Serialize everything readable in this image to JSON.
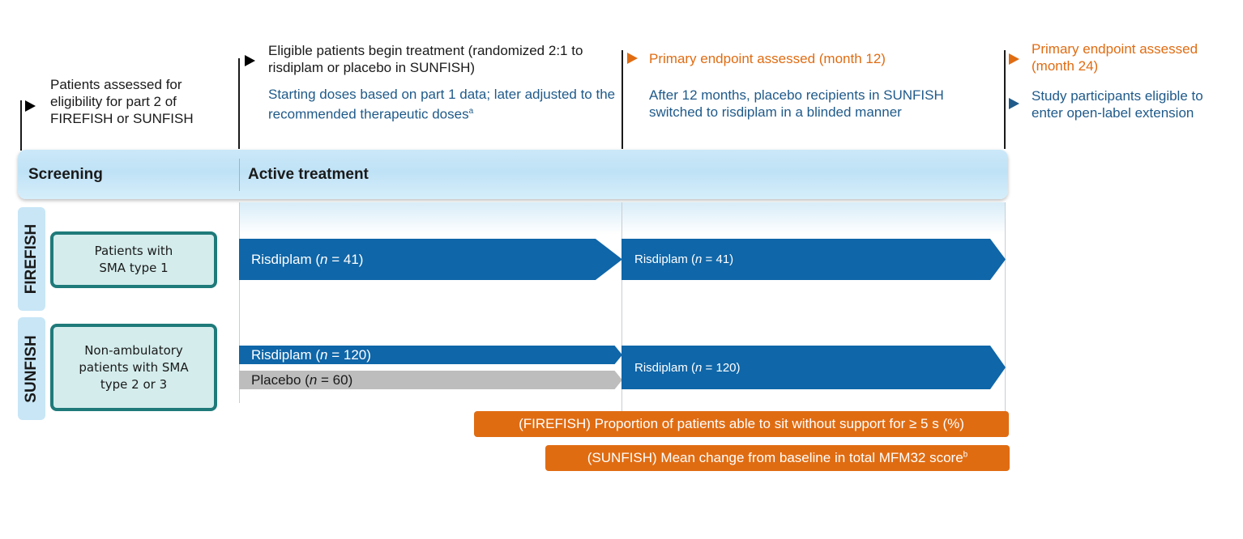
{
  "milestones": {
    "m0": {
      "text": "Patients assessed for eligibility for part 2 of FIREFISH or SUNFISH"
    },
    "m1": {
      "text": "Eligible patients begin treatment (randomized 2:1 to risdiplam or placebo in SUNFISH)",
      "note": "Starting doses based on part 1 data; later adjusted to the recommended therapeutic doses",
      "note_sup": "a"
    },
    "m2": {
      "title": "Primary endpoint assessed (month 12)",
      "note": "After 12 months, placebo recipients in SUNFISH switched to risdiplam in a blinded manner"
    },
    "m3": {
      "title": "Primary endpoint assessed (month 24)",
      "note": "Study participants eligible to enter open-label extension"
    }
  },
  "phases": {
    "screening": "Screening",
    "active": "Active treatment"
  },
  "studies": {
    "firefish": {
      "label": "FIREFISH",
      "population": "Patients with SMA type 1",
      "arm1": {
        "name": "Risdiplam",
        "n_prefix": "n",
        "n": "41"
      },
      "arm2": {
        "name": "Risdiplam",
        "n_prefix": "n",
        "n": "41"
      }
    },
    "sunfish": {
      "label": "SUNFISH",
      "population": "Non-ambulatory patients with SMA type 2 or 3",
      "arm_risdiplam": {
        "name": "Risdiplam",
        "n_prefix": "n",
        "n": "120"
      },
      "arm_placebo": {
        "name": "Placebo",
        "n_prefix": "n",
        "n": "60"
      },
      "arm_combined": {
        "name": "Risdiplam",
        "n_prefix": "n",
        "n": "120"
      }
    }
  },
  "endpoints": {
    "firefish": "(FIREFISH) Proportion of patients able to sit without support for ≥ 5 s (%)",
    "sunfish": "(SUNFISH) Mean change from baseline in total MFM32 score",
    "sunfish_sup": "b"
  },
  "colors": {
    "arrow_blue": "#0f66a8",
    "placebo_gray": "#bdbdbd",
    "endpoint_orange": "#e06c12",
    "box_teal": "#1f7a7a",
    "phase_blue": "#c8e6f6"
  },
  "icons": {
    "milestone_black": "black-triangle-marker-icon",
    "milestone_orange": "orange-triangle-marker-icon",
    "milestone_blue": "blue-triangle-marker-icon"
  }
}
